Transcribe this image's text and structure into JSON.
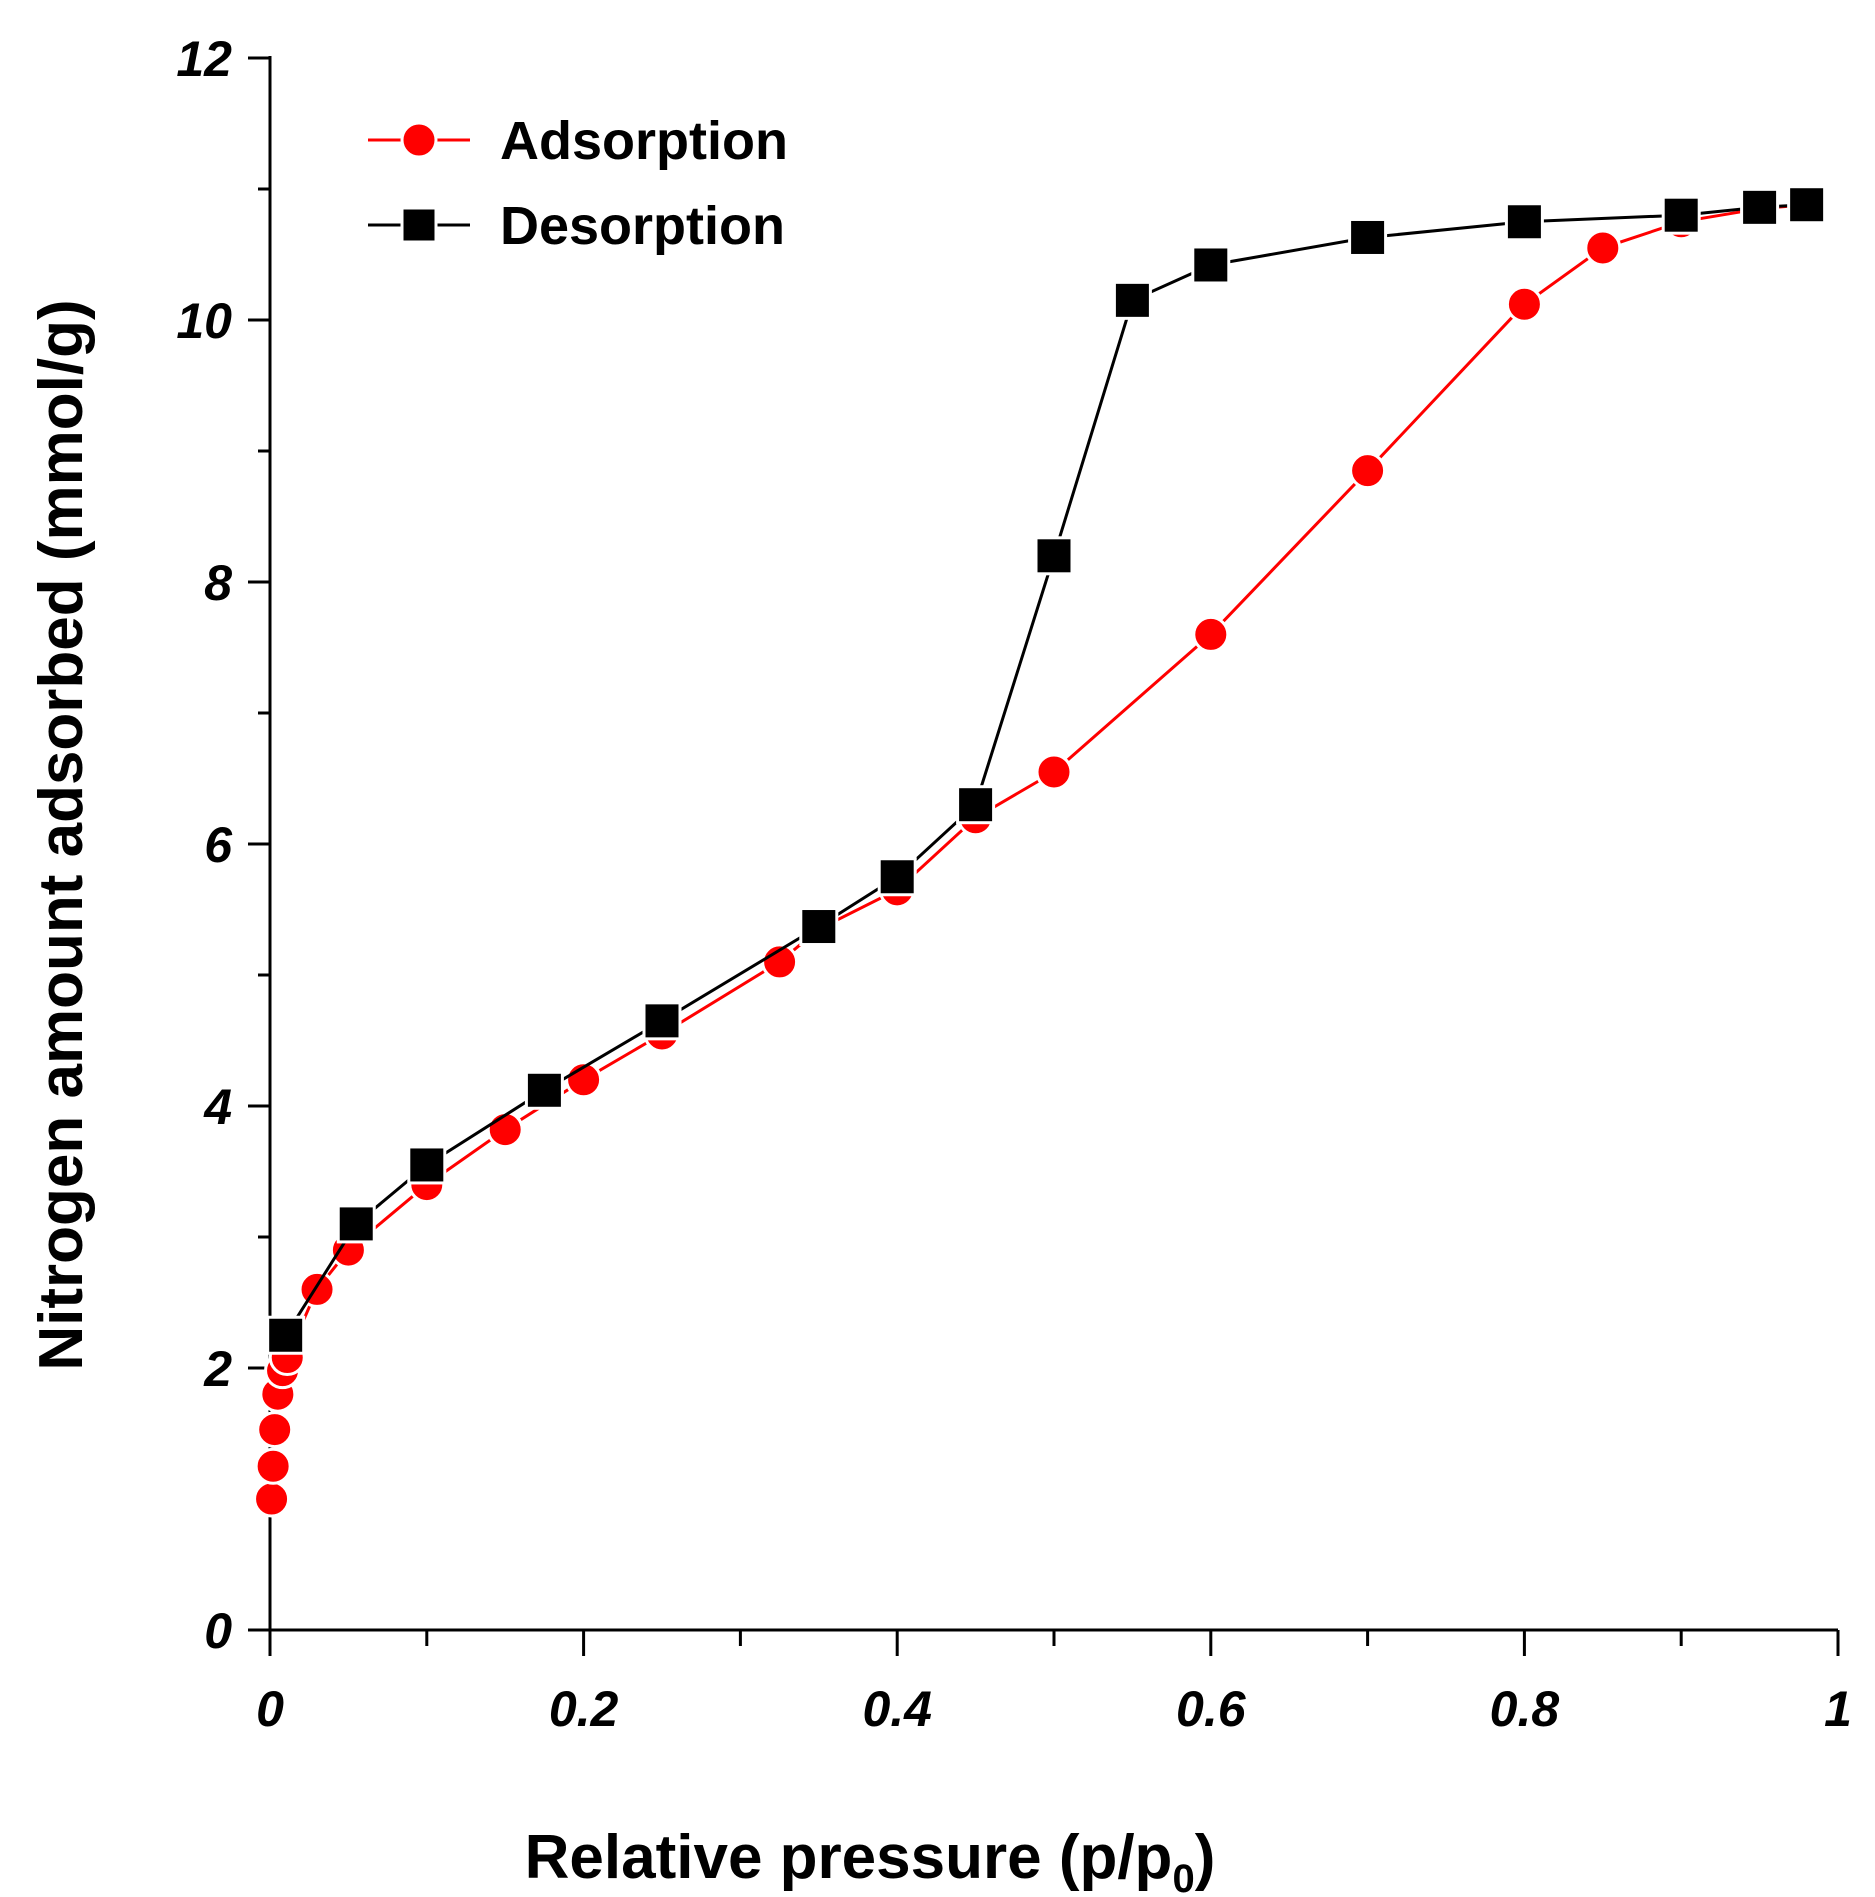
{
  "chart_data": {
    "type": "line",
    "xlabel": "Relative pressure (p/p",
    "xlabel_sub": "0",
    "xlabel_tail": ")",
    "ylabel": "Nitrogen amount adsorbed (mmol/g)",
    "xlim": [
      0,
      1
    ],
    "ylim": [
      0,
      12
    ],
    "x_ticks": [
      0,
      0.2,
      0.4,
      0.6,
      0.8,
      1
    ],
    "x_tick_labels": [
      "0",
      "0.2",
      "0.4",
      "0.6",
      "0.8",
      "1"
    ],
    "x_minor_ticks": [
      0.1,
      0.3,
      0.5,
      0.7,
      0.9
    ],
    "y_ticks": [
      0,
      2,
      4,
      6,
      8,
      10,
      12
    ],
    "y_tick_labels": [
      "0",
      "2",
      "4",
      "6",
      "8",
      "10",
      "12"
    ],
    "y_minor_ticks": [
      1,
      3,
      5,
      7,
      9,
      11
    ],
    "grid": false,
    "legend_position": "top-left",
    "series": [
      {
        "name": "Adsorption",
        "color": "#ff0000",
        "marker": "circle",
        "x": [
          0.001,
          0.002,
          0.003,
          0.005,
          0.008,
          0.011,
          0.03,
          0.05,
          0.1,
          0.15,
          0.2,
          0.25,
          0.325,
          0.35,
          0.4,
          0.45,
          0.5,
          0.6,
          0.7,
          0.8,
          0.85,
          0.9,
          0.95,
          0.98
        ],
        "y": [
          1.0,
          1.25,
          1.53,
          1.8,
          1.98,
          2.08,
          2.6,
          2.9,
          3.4,
          3.82,
          4.2,
          4.55,
          5.1,
          5.35,
          5.65,
          6.2,
          6.55,
          7.6,
          8.85,
          10.12,
          10.55,
          10.75,
          10.85,
          10.88
        ]
      },
      {
        "name": "Desorption",
        "color": "#000000",
        "marker": "square",
        "x": [
          0.98,
          0.95,
          0.9,
          0.8,
          0.7,
          0.6,
          0.55,
          0.5,
          0.45,
          0.4,
          0.35,
          0.25,
          0.175,
          0.1,
          0.055,
          0.01
        ],
        "y": [
          10.88,
          10.86,
          10.8,
          10.75,
          10.63,
          10.42,
          10.15,
          8.2,
          6.3,
          5.75,
          5.37,
          4.65,
          4.12,
          3.55,
          3.1,
          2.25
        ]
      }
    ]
  }
}
